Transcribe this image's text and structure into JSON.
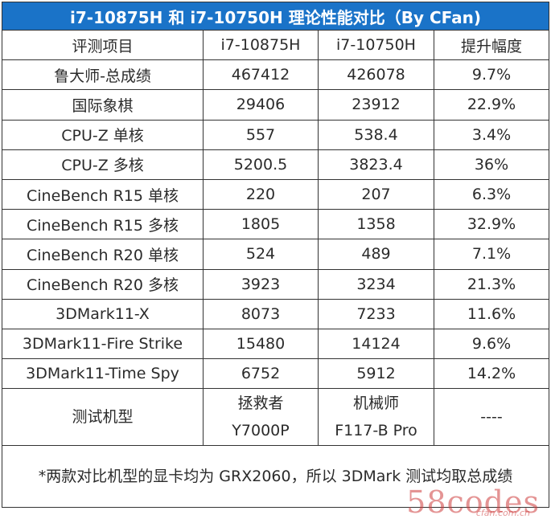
{
  "title": "i7-10875H 和 i7-10750H 理论性能对比（By CFan)",
  "header": [
    "评测项目",
    "i7-10875H",
    "i7-10750H",
    "提升幅度"
  ],
  "rows": [
    {
      "item": "鲁大师-总成绩",
      "a": "467412",
      "b": "426078",
      "gain": "9.7%"
    },
    {
      "item": "国际象棋",
      "a": "29406",
      "b": "23912",
      "gain": "22.9%"
    },
    {
      "item": "CPU-Z 单核",
      "a": "557",
      "b": "538.4",
      "gain": "3.4%"
    },
    {
      "item": "CPU-Z 多核",
      "a": "5200.5",
      "b": "3823.4",
      "gain": "36%"
    },
    {
      "item": "CineBench R15 单核",
      "a": "220",
      "b": "207",
      "gain": "6.3%"
    },
    {
      "item": "CineBench R15 多核",
      "a": "1805",
      "b": "1358",
      "gain": "32.9%"
    },
    {
      "item": "CineBench R20 单核",
      "a": "524",
      "b": "489",
      "gain": "7.1%"
    },
    {
      "item": "CineBench R20 多核",
      "a": "3923",
      "b": "3234",
      "gain": "21.3%"
    },
    {
      "item": "3DMark11-X",
      "a": "8073",
      "b": "7233",
      "gain": "11.6%"
    },
    {
      "item": "3DMark11-Fire Strike",
      "a": "15480",
      "b": "14124",
      "gain": "9.6%"
    },
    {
      "item": "3DMark11-Time Spy",
      "a": "6752",
      "b": "5912",
      "gain": "14.2%"
    }
  ],
  "device_row": {
    "label": "测试机型",
    "a_line1": "拯救者",
    "a_line2": "Y7000P",
    "b_line1": "机械师",
    "b_line2": "F117-B Pro",
    "gain": "----"
  },
  "note": "*两款对比机型的显卡均为 GRX2060，所以 3DMark 测试均取总成绩",
  "watermark": {
    "main": "58codes",
    "sub": "cfan.com.cn"
  },
  "colors": {
    "title_bg": "#1a73c8",
    "title_text": "#ffffff",
    "border": "#333333",
    "text": "#2b2b2b",
    "watermark": "#cd3c3c"
  }
}
